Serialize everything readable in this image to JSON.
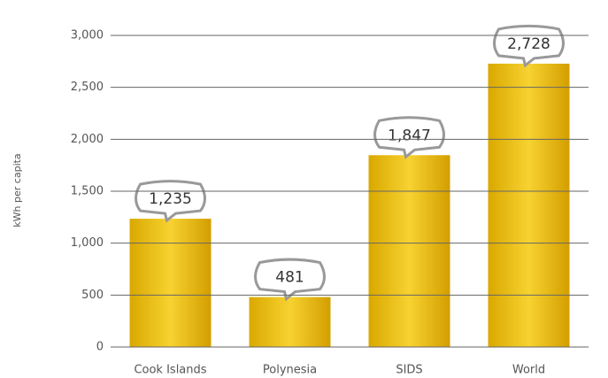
{
  "chart_data": {
    "type": "bar",
    "y_label": "kWh per capita",
    "categories": [
      "Cook Islands",
      "Polynesia",
      "SIDS",
      "World"
    ],
    "values": [
      1235,
      481,
      1847,
      2728
    ],
    "value_labels": [
      "1,235",
      "481",
      "1,847",
      "2,728"
    ],
    "color": "#e8b820",
    "ylim": [
      0,
      3000
    ],
    "yticks": [
      0,
      500,
      {
        "value": 1000,
        "label": "1,000"
      },
      {
        "value": 1500,
        "label": "1,500"
      },
      {
        "value": 2000,
        "label": "2,000"
      },
      {
        "value": 2500,
        "label": "2,500"
      },
      {
        "value": 3000,
        "label": "3,000"
      }
    ],
    "grid": true
  }
}
